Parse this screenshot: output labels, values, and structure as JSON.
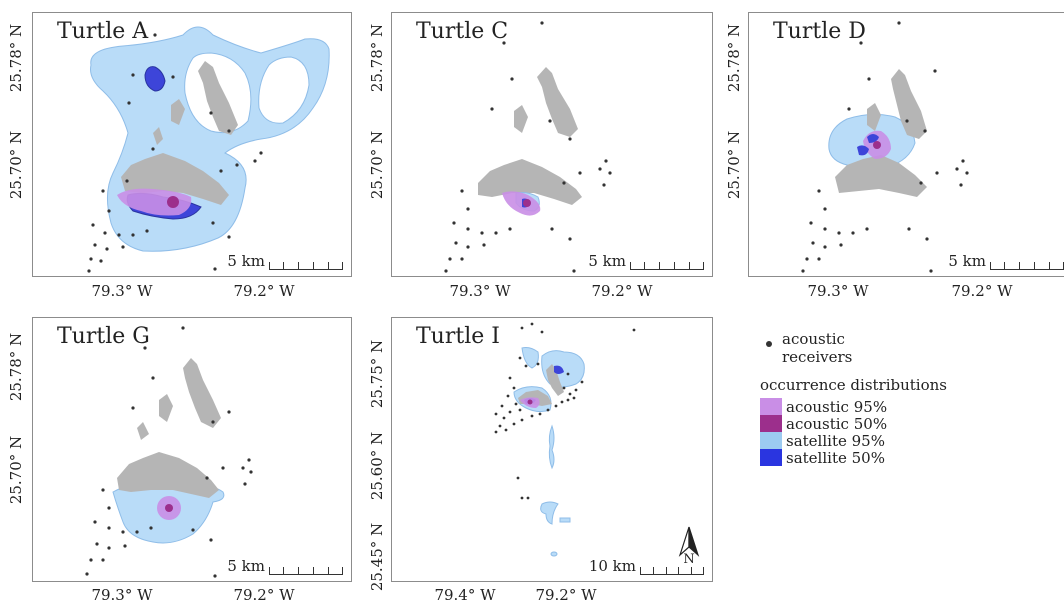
{
  "panels": [
    {
      "id": "A",
      "title": "Turtle A",
      "scale_label": "5 km",
      "y_ticks": [
        "25.78° N",
        "25.70° N"
      ],
      "x_ticks": [
        "79.3° W",
        "79.2° W"
      ]
    },
    {
      "id": "C",
      "title": "Turtle C",
      "scale_label": "5 km",
      "y_ticks": [
        "25.78° N",
        "25.70° N"
      ],
      "x_ticks": [
        "79.3° W",
        "79.2° W"
      ]
    },
    {
      "id": "D",
      "title": "Turtle D",
      "scale_label": "5 km",
      "y_ticks": [
        "25.78° N",
        "25.70° N"
      ],
      "x_ticks": [
        "79.3° W",
        "79.2° W"
      ]
    },
    {
      "id": "G",
      "title": "Turtle G",
      "scale_label": "5 km",
      "y_ticks": [
        "25.78° N",
        "25.70° N"
      ],
      "x_ticks": [
        "79.3° W",
        "79.2° W"
      ]
    },
    {
      "id": "I",
      "title": "Turtle I",
      "scale_label": "10 km",
      "y_ticks": [
        "25.75° N",
        "25.60° N",
        "25.45° N"
      ],
      "x_ticks": [
        "79.4° W",
        "79.2° W"
      ],
      "north_label": "N"
    }
  ],
  "legend": {
    "receivers_label_1": "acoustic",
    "receivers_label_2": "receivers",
    "heading": "occurrence distributions",
    "items": [
      {
        "label": "acoustic 95%",
        "color": "#c98ee6"
      },
      {
        "label": "acoustic 50%",
        "color": "#9c2f8c"
      },
      {
        "label": "satellite 95%",
        "color": "#9ccbf1"
      },
      {
        "label": "satellite 50%",
        "color": "#2a35e0"
      }
    ]
  },
  "colors": {
    "island": "#b5b5b5",
    "receiver": "#333333",
    "sat95": "#b9dcf8",
    "sat95_edge": "#8fbde8",
    "sat50": "#3d45d9",
    "ac95": "#c98ee6",
    "ac50": "#9c2f8c"
  }
}
